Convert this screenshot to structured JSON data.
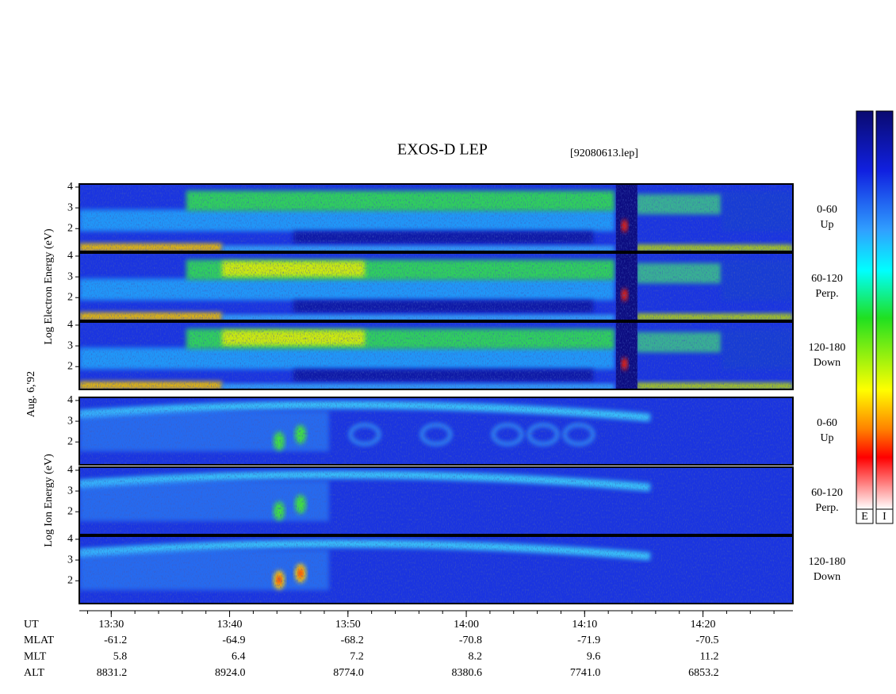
{
  "header": {
    "title": "EXOS-D LEP",
    "file": "[92080613.lep]"
  },
  "date_label": "Aug. 6,'92",
  "groups": [
    {
      "axis_label": "Log Electron Energy (eV)",
      "panels": [
        {
          "angle": "0-60",
          "direction": "Up"
        },
        {
          "angle": "60-120",
          "direction": "Perp."
        },
        {
          "angle": "120-180",
          "direction": "Down"
        }
      ]
    },
    {
      "axis_label": "Log Ion Energy (eV)",
      "panels": [
        {
          "angle": "0-60",
          "direction": "Up"
        },
        {
          "angle": "60-120",
          "direction": "Perp."
        },
        {
          "angle": "120-180",
          "direction": "Down"
        }
      ]
    }
  ],
  "ylim": [
    0.9,
    4.15
  ],
  "yticks": [
    2,
    3,
    4
  ],
  "time_axis": {
    "label": "UT",
    "xlim": [
      807.3,
      867.6
    ],
    "ticks": [
      {
        "value": 810,
        "label": "13:30"
      },
      {
        "value": 820,
        "label": "13:40"
      },
      {
        "value": 830,
        "label": "13:50"
      },
      {
        "value": 840,
        "label": "14:00"
      },
      {
        "value": 850,
        "label": "14:10"
      },
      {
        "value": 860,
        "label": "14:20"
      }
    ]
  },
  "ephemeris": [
    {
      "label": "MLAT",
      "values": [
        -61.2,
        -64.9,
        -68.2,
        -70.8,
        -71.9,
        -70.5
      ]
    },
    {
      "label": "MLT",
      "values": [
        5.8,
        6.4,
        7.2,
        8.2,
        9.6,
        11.2
      ]
    },
    {
      "label": "ALT",
      "values": [
        8831.2,
        {
          "value": 8924,
          "label": "8924.0"
        },
        {
          "value": 8774,
          "label": "8774.0"
        },
        8380.6,
        {
          "value": 7741,
          "label": "7741.0"
        },
        6853.2
      ]
    }
  ],
  "colorbar_labels": [
    "E",
    "I"
  ]
}
